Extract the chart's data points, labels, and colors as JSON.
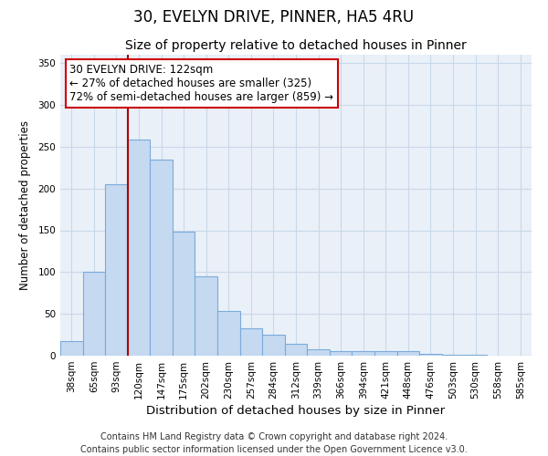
{
  "title": "30, EVELYN DRIVE, PINNER, HA5 4RU",
  "subtitle": "Size of property relative to detached houses in Pinner",
  "xlabel": "Distribution of detached houses by size in Pinner",
  "ylabel": "Number of detached properties",
  "categories": [
    "38sqm",
    "65sqm",
    "93sqm",
    "120sqm",
    "147sqm",
    "175sqm",
    "202sqm",
    "230sqm",
    "257sqm",
    "284sqm",
    "312sqm",
    "339sqm",
    "366sqm",
    "394sqm",
    "421sqm",
    "448sqm",
    "476sqm",
    "503sqm",
    "530sqm",
    "558sqm",
    "585sqm"
  ],
  "values": [
    18,
    100,
    205,
    258,
    235,
    148,
    95,
    53,
    33,
    25,
    14,
    8,
    5,
    5,
    5,
    5,
    2,
    1,
    1,
    0,
    0
  ],
  "bar_color": "#c5d9f1",
  "bar_edge_color": "#7aabdb",
  "bar_edge_width": 0.8,
  "vline_index": 3,
  "vline_color": "#aa0000",
  "annotation_text": "30 EVELYN DRIVE: 122sqm\n← 27% of detached houses are smaller (325)\n72% of semi-detached houses are larger (859) →",
  "annotation_box_color": "#ffffff",
  "annotation_box_edge_color": "#cc0000",
  "ylim": [
    0,
    360
  ],
  "yticks": [
    0,
    50,
    100,
    150,
    200,
    250,
    300,
    350
  ],
  "grid_color": "#c8d8e8",
  "background_color": "#e8eef8",
  "plot_bg_color": "#eaf0f8",
  "footer_text": "Contains HM Land Registry data © Crown copyright and database right 2024.\nContains public sector information licensed under the Open Government Licence v3.0.",
  "title_fontsize": 12,
  "subtitle_fontsize": 10,
  "xlabel_fontsize": 9.5,
  "ylabel_fontsize": 8.5,
  "tick_fontsize": 7.5,
  "annotation_fontsize": 8.5,
  "footer_fontsize": 7
}
